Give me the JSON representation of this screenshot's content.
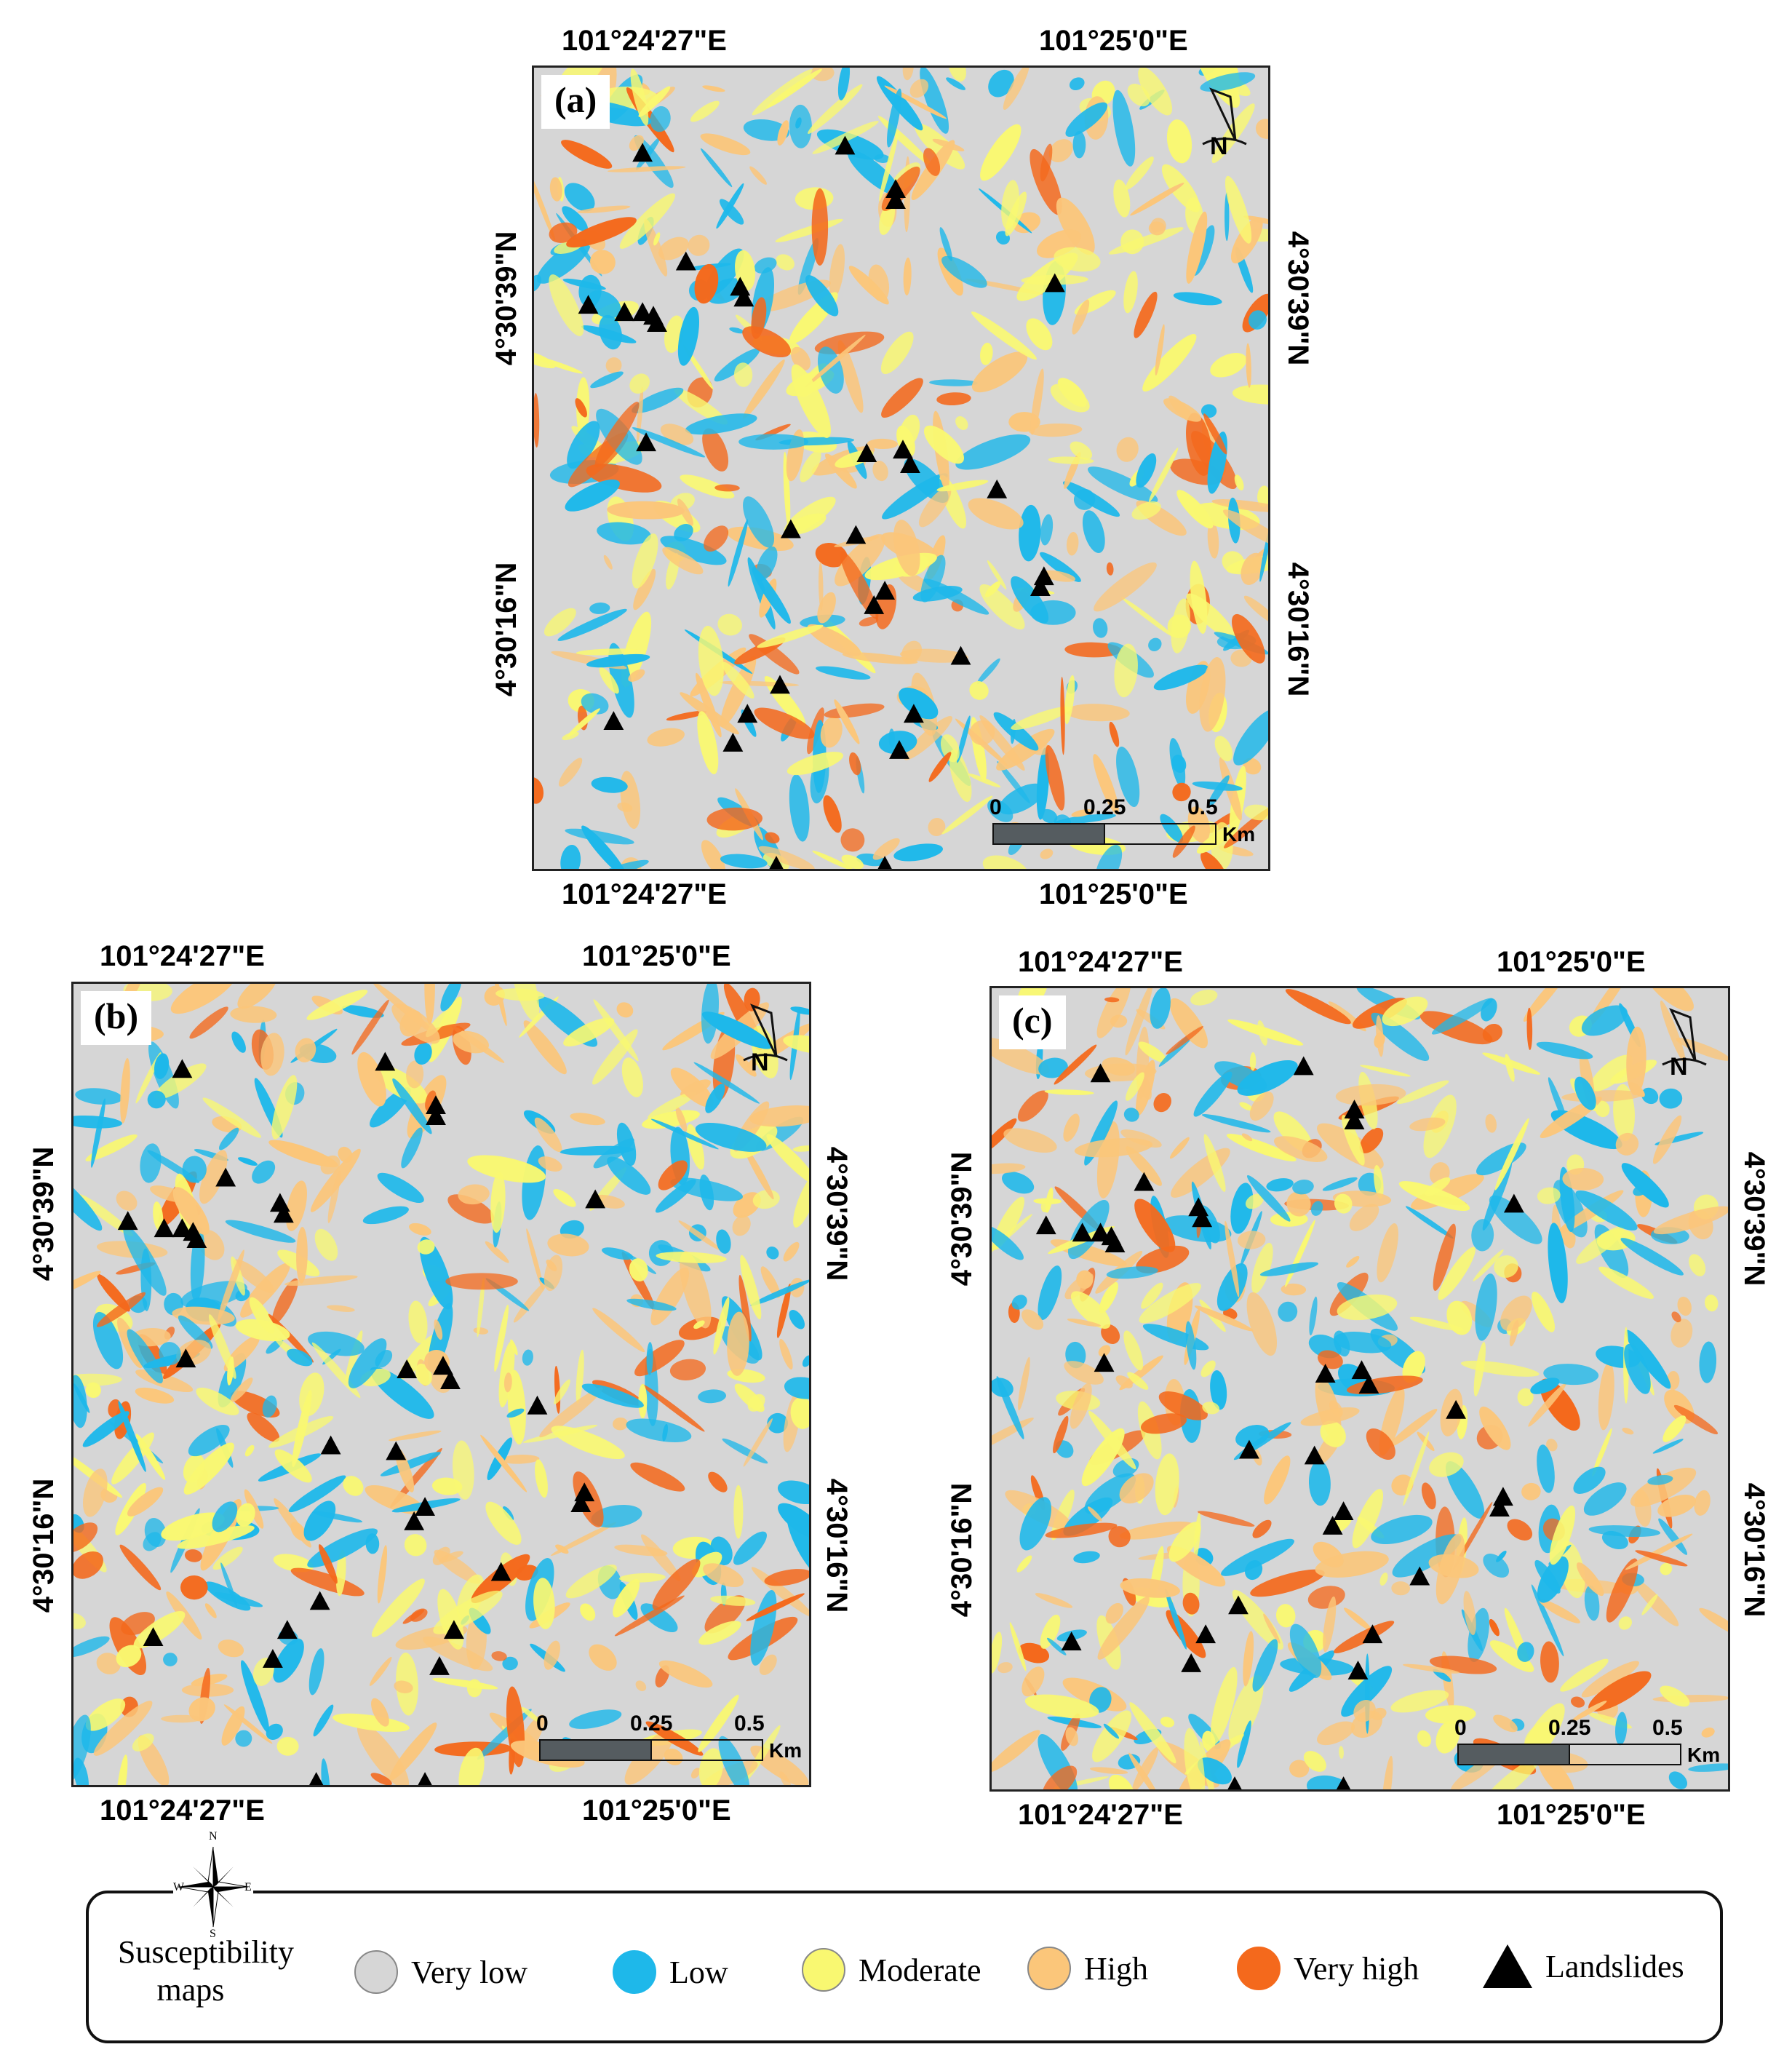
{
  "colors": {
    "very_low": "#d6d6d6",
    "low": "#1eb8ea",
    "moderate": "#f9f871",
    "high": "#fbc67a",
    "very_high": "#f4691c",
    "landslide": "#000000"
  },
  "panels": [
    {
      "label": "(a)",
      "top_coords": [
        "101°24'27\"E",
        "101°25'0\"E"
      ],
      "bottom_coords": [
        "101°24'27\"E",
        "101°25'0\"E"
      ],
      "left_coords": [
        "4°30'39\"N",
        "4°30'16\"N"
      ],
      "right_coords": [
        "4°30'39\"N",
        "4°30'16\"N"
      ],
      "scale": {
        "ticks": [
          "0",
          "0.25",
          "0.5"
        ],
        "unit": "Km"
      },
      "north": "N"
    },
    {
      "label": "(b)",
      "top_coords": [
        "101°24'27\"E",
        "101°25'0\"E"
      ],
      "bottom_coords": [
        "101°24'27\"E",
        "101°25'0\"E"
      ],
      "left_coords": [
        "4°30'39\"N",
        "4°30'16\"N"
      ],
      "right_coords": [
        "4°30'39\"N",
        "4°30'16\"N"
      ],
      "scale": {
        "ticks": [
          "0",
          "0.25",
          "0.5"
        ],
        "unit": "Km"
      },
      "north": "N"
    },
    {
      "label": "(c)",
      "top_coords": [
        "101°24'27\"E",
        "101°25'0\"E"
      ],
      "bottom_coords": [
        "101°24'27\"E",
        "101°25'0\"E"
      ],
      "left_coords": [
        "4°30'39\"N",
        "4°30'16\"N"
      ],
      "right_coords": [
        "4°30'39\"N",
        "4°30'16\"N"
      ],
      "scale": {
        "ticks": [
          "0",
          "0.25",
          "0.5"
        ],
        "unit": "Km"
      },
      "north": "N"
    }
  ],
  "legend": {
    "title": "Susceptibility maps",
    "items": [
      {
        "label": "Very low",
        "color": "#d6d6d6"
      },
      {
        "label": "Low",
        "color": "#1eb8ea"
      },
      {
        "label": "Moderate",
        "color": "#f9f871"
      },
      {
        "label": "High",
        "color": "#fbc67a"
      },
      {
        "label": "Very high",
        "color": "#f4691c"
      }
    ],
    "landslides_label": "Landslides"
  },
  "compass": {
    "n": "N",
    "s": "S",
    "e": "E",
    "w": "W"
  }
}
